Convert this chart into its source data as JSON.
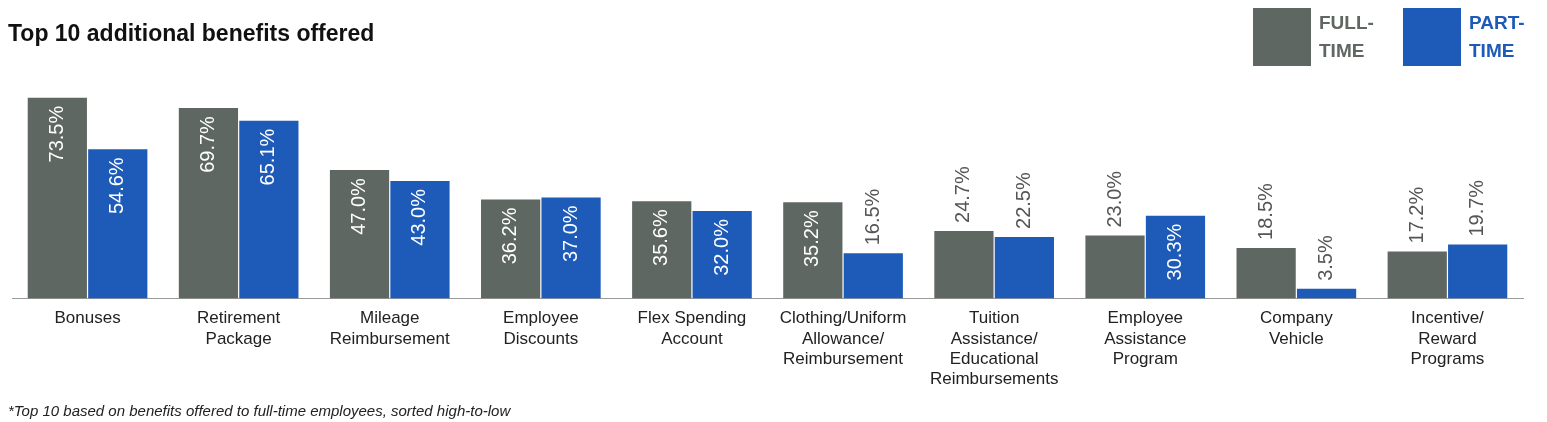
{
  "chart_data": {
    "type": "bar",
    "title": "Top 10 additional benefits offered",
    "categories": [
      "Bonuses",
      "Retirement Package",
      "Mileage Reimbursement",
      "Employee Discounts",
      "Flex Spending Account",
      "Clothing/Uniform Allowance/ Reimbursement",
      "Tuition Assistance/ Educational Reimbursements",
      "Employee Assistance Program",
      "Company Vehicle",
      "Incentive/ Reward Programs"
    ],
    "series": [
      {
        "name": "FULL-TIME",
        "color": "#5f6762",
        "values": [
          73.5,
          69.7,
          47.0,
          36.2,
          35.6,
          35.2,
          24.7,
          23.0,
          18.5,
          17.2
        ],
        "value_labels": [
          "73.5%",
          "69.7%",
          "47.0%",
          "36.2%",
          "35.6%",
          "35.2%",
          "24.7%",
          "23.0%",
          "18.5%",
          "17.2%"
        ]
      },
      {
        "name": "PART-TIME",
        "color": "#1e5bb8",
        "values": [
          54.6,
          65.1,
          43.0,
          37.0,
          32.0,
          16.5,
          22.5,
          30.3,
          3.5,
          19.7
        ],
        "value_labels": [
          "54.6%",
          "65.1%",
          "43.0%",
          "37.0%",
          "32.0%",
          "16.5%",
          "22.5%",
          "30.3%",
          "3.5%",
          "19.7%"
        ]
      }
    ],
    "legend": "top right",
    "grid": false,
    "annotations": [
      "*Top 10 based on benefits offered to full-time employees, sorted high-to-low"
    ]
  }
}
